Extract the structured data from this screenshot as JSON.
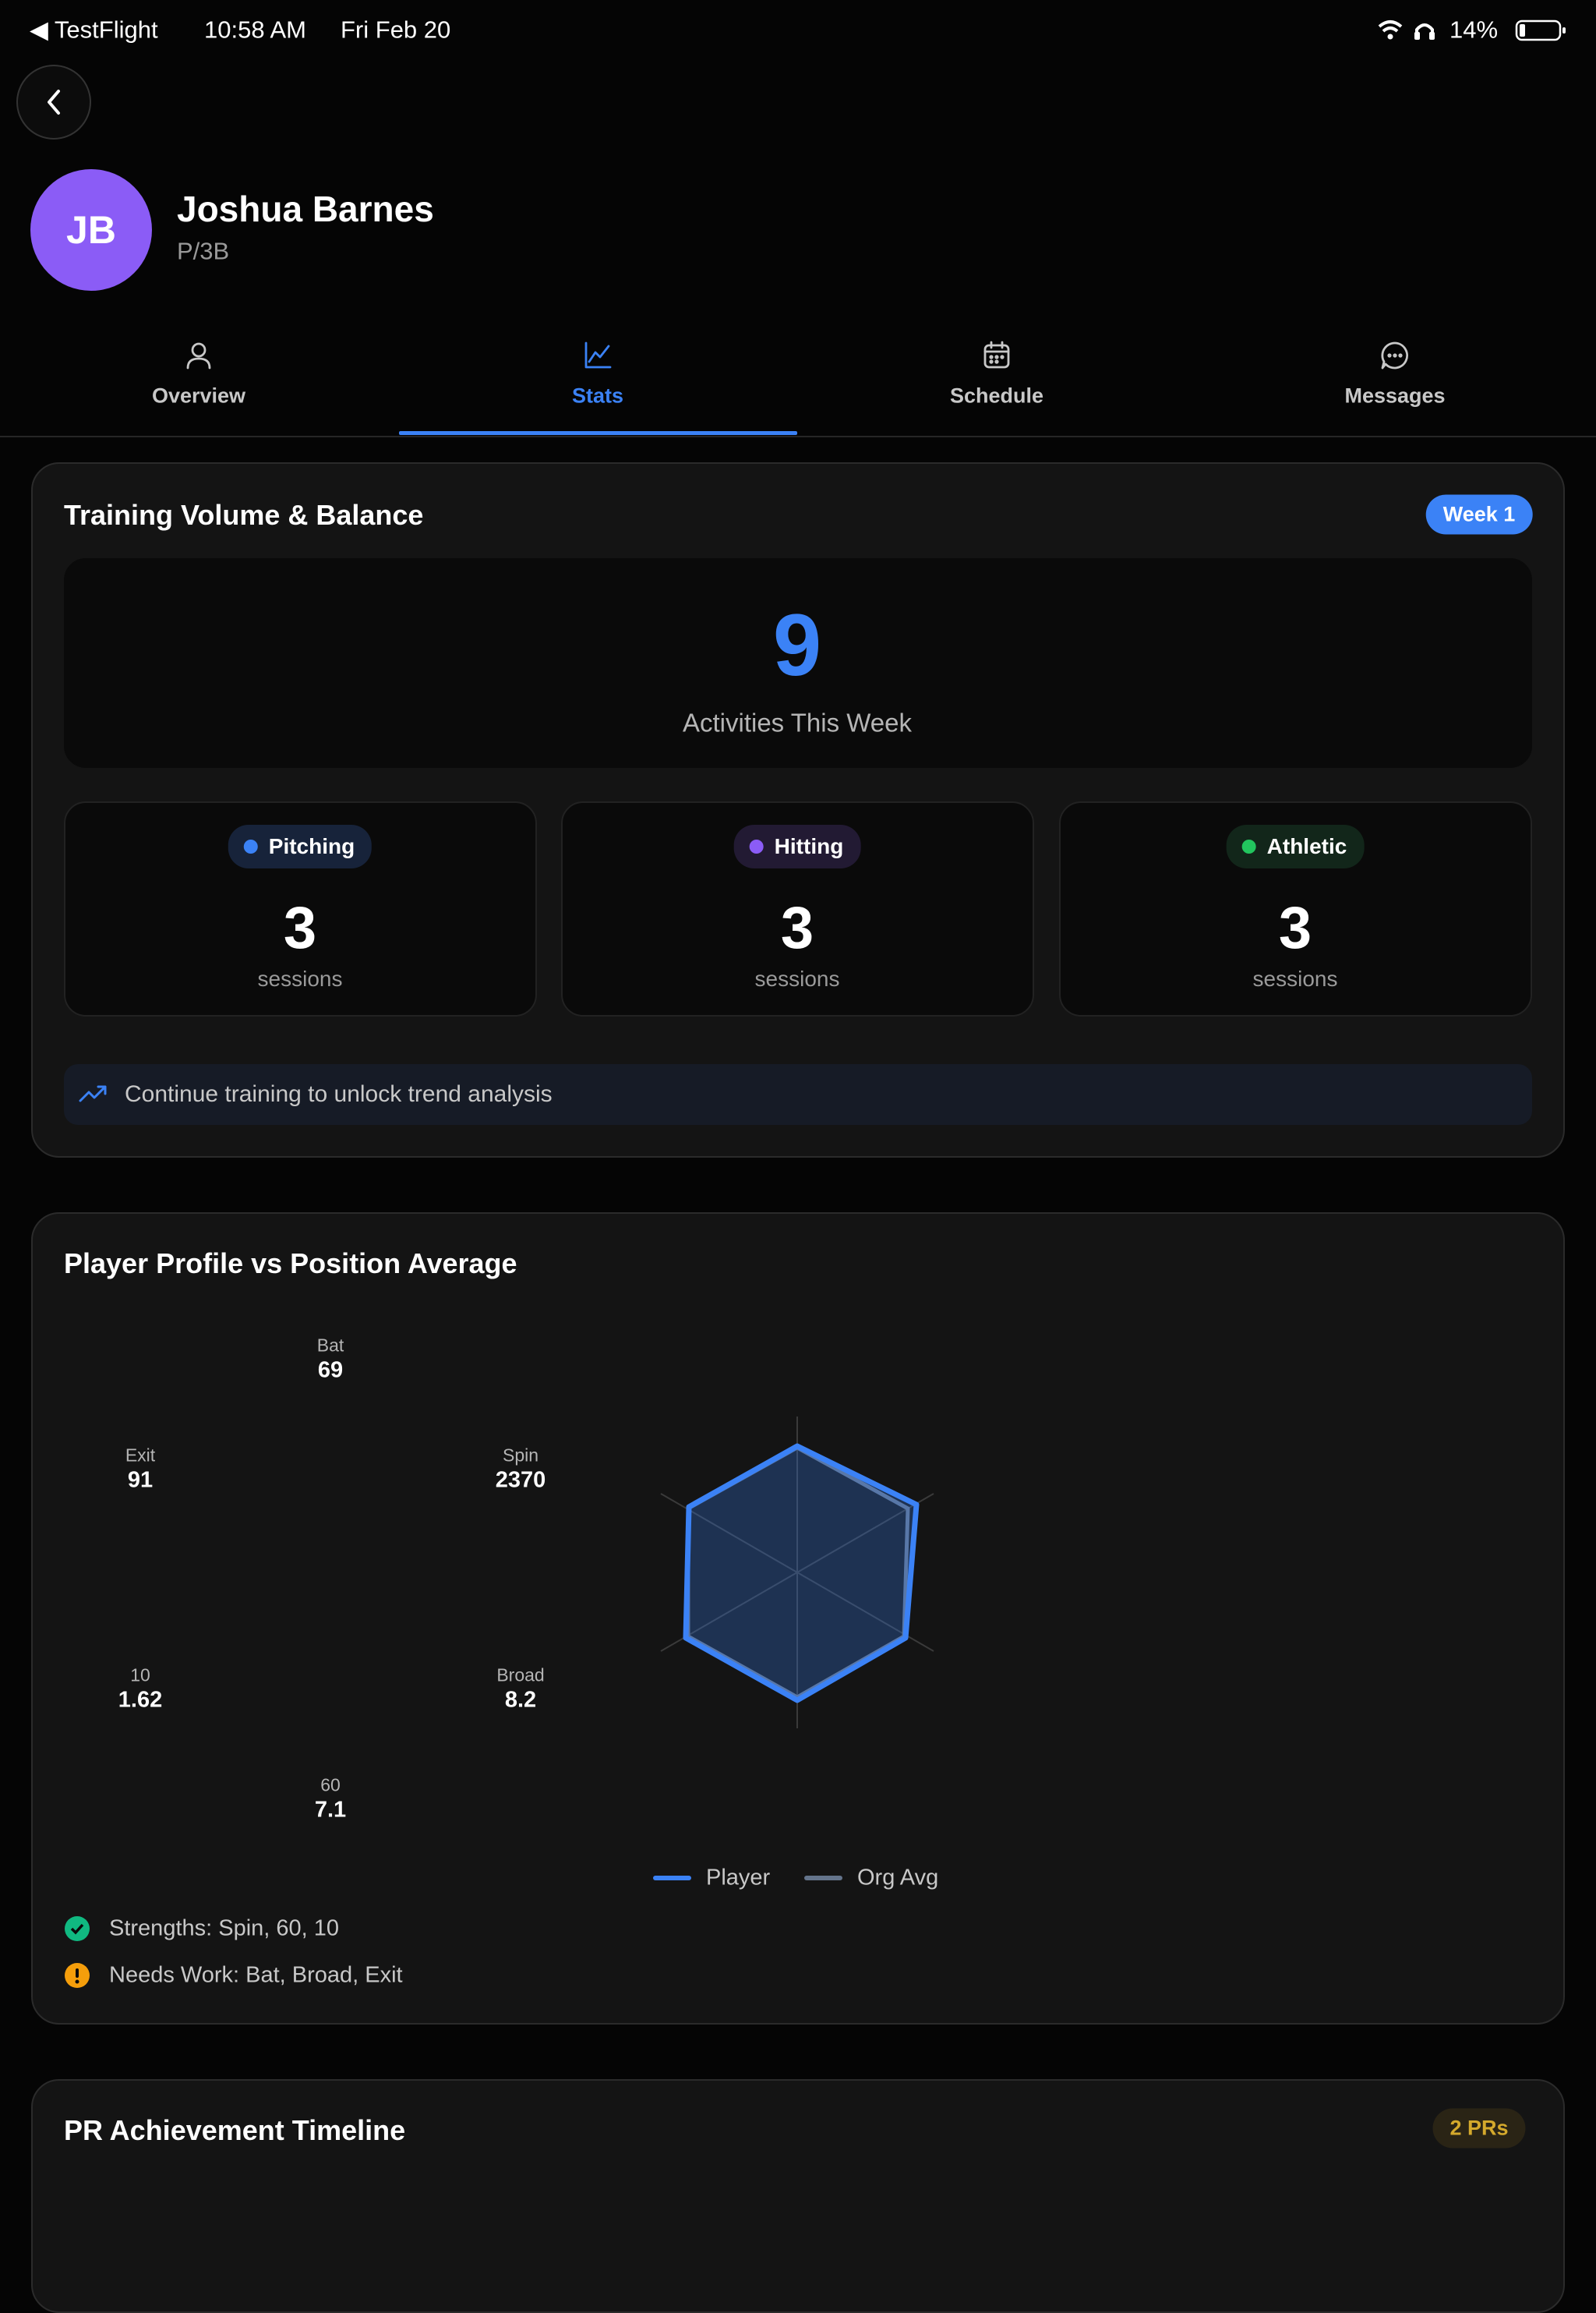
{
  "status_bar": {
    "back_app": "TestFlight",
    "time": "10:58 AM",
    "date": "Fri Feb 20",
    "battery": "14%"
  },
  "profile": {
    "initials": "JB",
    "name": "Joshua Barnes",
    "position": "P/3B"
  },
  "tabs": [
    "Overview",
    "Stats",
    "Schedule",
    "Messages"
  ],
  "training_card": {
    "title": "Training Volume & Balance",
    "badge": "Week 1",
    "total": 9,
    "total_label": "Activities This Week",
    "categories": [
      {
        "name": "Pitching",
        "count": 3,
        "unit": "sessions"
      },
      {
        "name": "Hitting",
        "count": 3,
        "unit": "sessions"
      },
      {
        "name": "Athletic",
        "count": 3,
        "unit": "sessions"
      }
    ],
    "notice": "Continue training to unlock trend analysis"
  },
  "profile_card": {
    "title": "Player Profile vs Position Average",
    "metrics": [
      {
        "label": "Bat",
        "value": 69
      },
      {
        "label": "Exit",
        "value": 91
      },
      {
        "label": "Spin",
        "value": 2370
      },
      {
        "label": "10",
        "value": 1.62
      },
      {
        "label": "Broad",
        "value": 8.2
      },
      {
        "label": "60",
        "value": 7.1
      }
    ],
    "legend": [
      "Player",
      "Org Avg"
    ],
    "strengths": "Strengths: Spin, 60, 10",
    "needs_work": "Needs Work: Bat, Broad, Exit"
  },
  "pr_card": {
    "title": "PR Achievement Timeline",
    "badge": "2 PRs"
  }
}
